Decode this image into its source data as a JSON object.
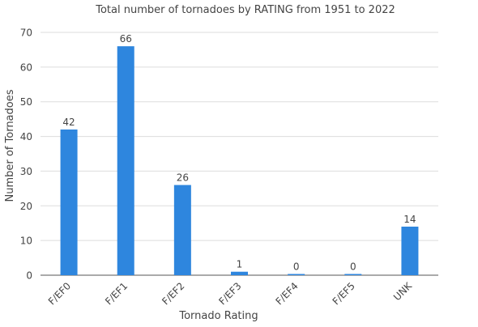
{
  "chart_data": {
    "type": "bar",
    "title": "Total number of tornadoes by RATING from 1951 to 2022",
    "xlabel": "Tornado Rating",
    "ylabel": "Number of Tornadoes",
    "categories": [
      "F/EF0",
      "F/EF1",
      "F/EF2",
      "F/EF3",
      "F/EF4",
      "F/EF5",
      "UNK"
    ],
    "values": [
      42,
      66,
      26,
      1,
      0,
      0,
      14
    ],
    "data_labels": [
      "42",
      "66",
      "26",
      "1",
      "0",
      "0",
      "14"
    ],
    "ylim": [
      0,
      70
    ],
    "yticks": [
      0,
      10,
      20,
      30,
      40,
      50,
      60,
      70
    ],
    "ytick_labels": [
      "0",
      "10",
      "20",
      "30",
      "40",
      "50",
      "60",
      "70"
    ],
    "grid": true,
    "bar_color": "#2e86de",
    "text_color": "#444444",
    "grid_color": "#dddddd"
  }
}
